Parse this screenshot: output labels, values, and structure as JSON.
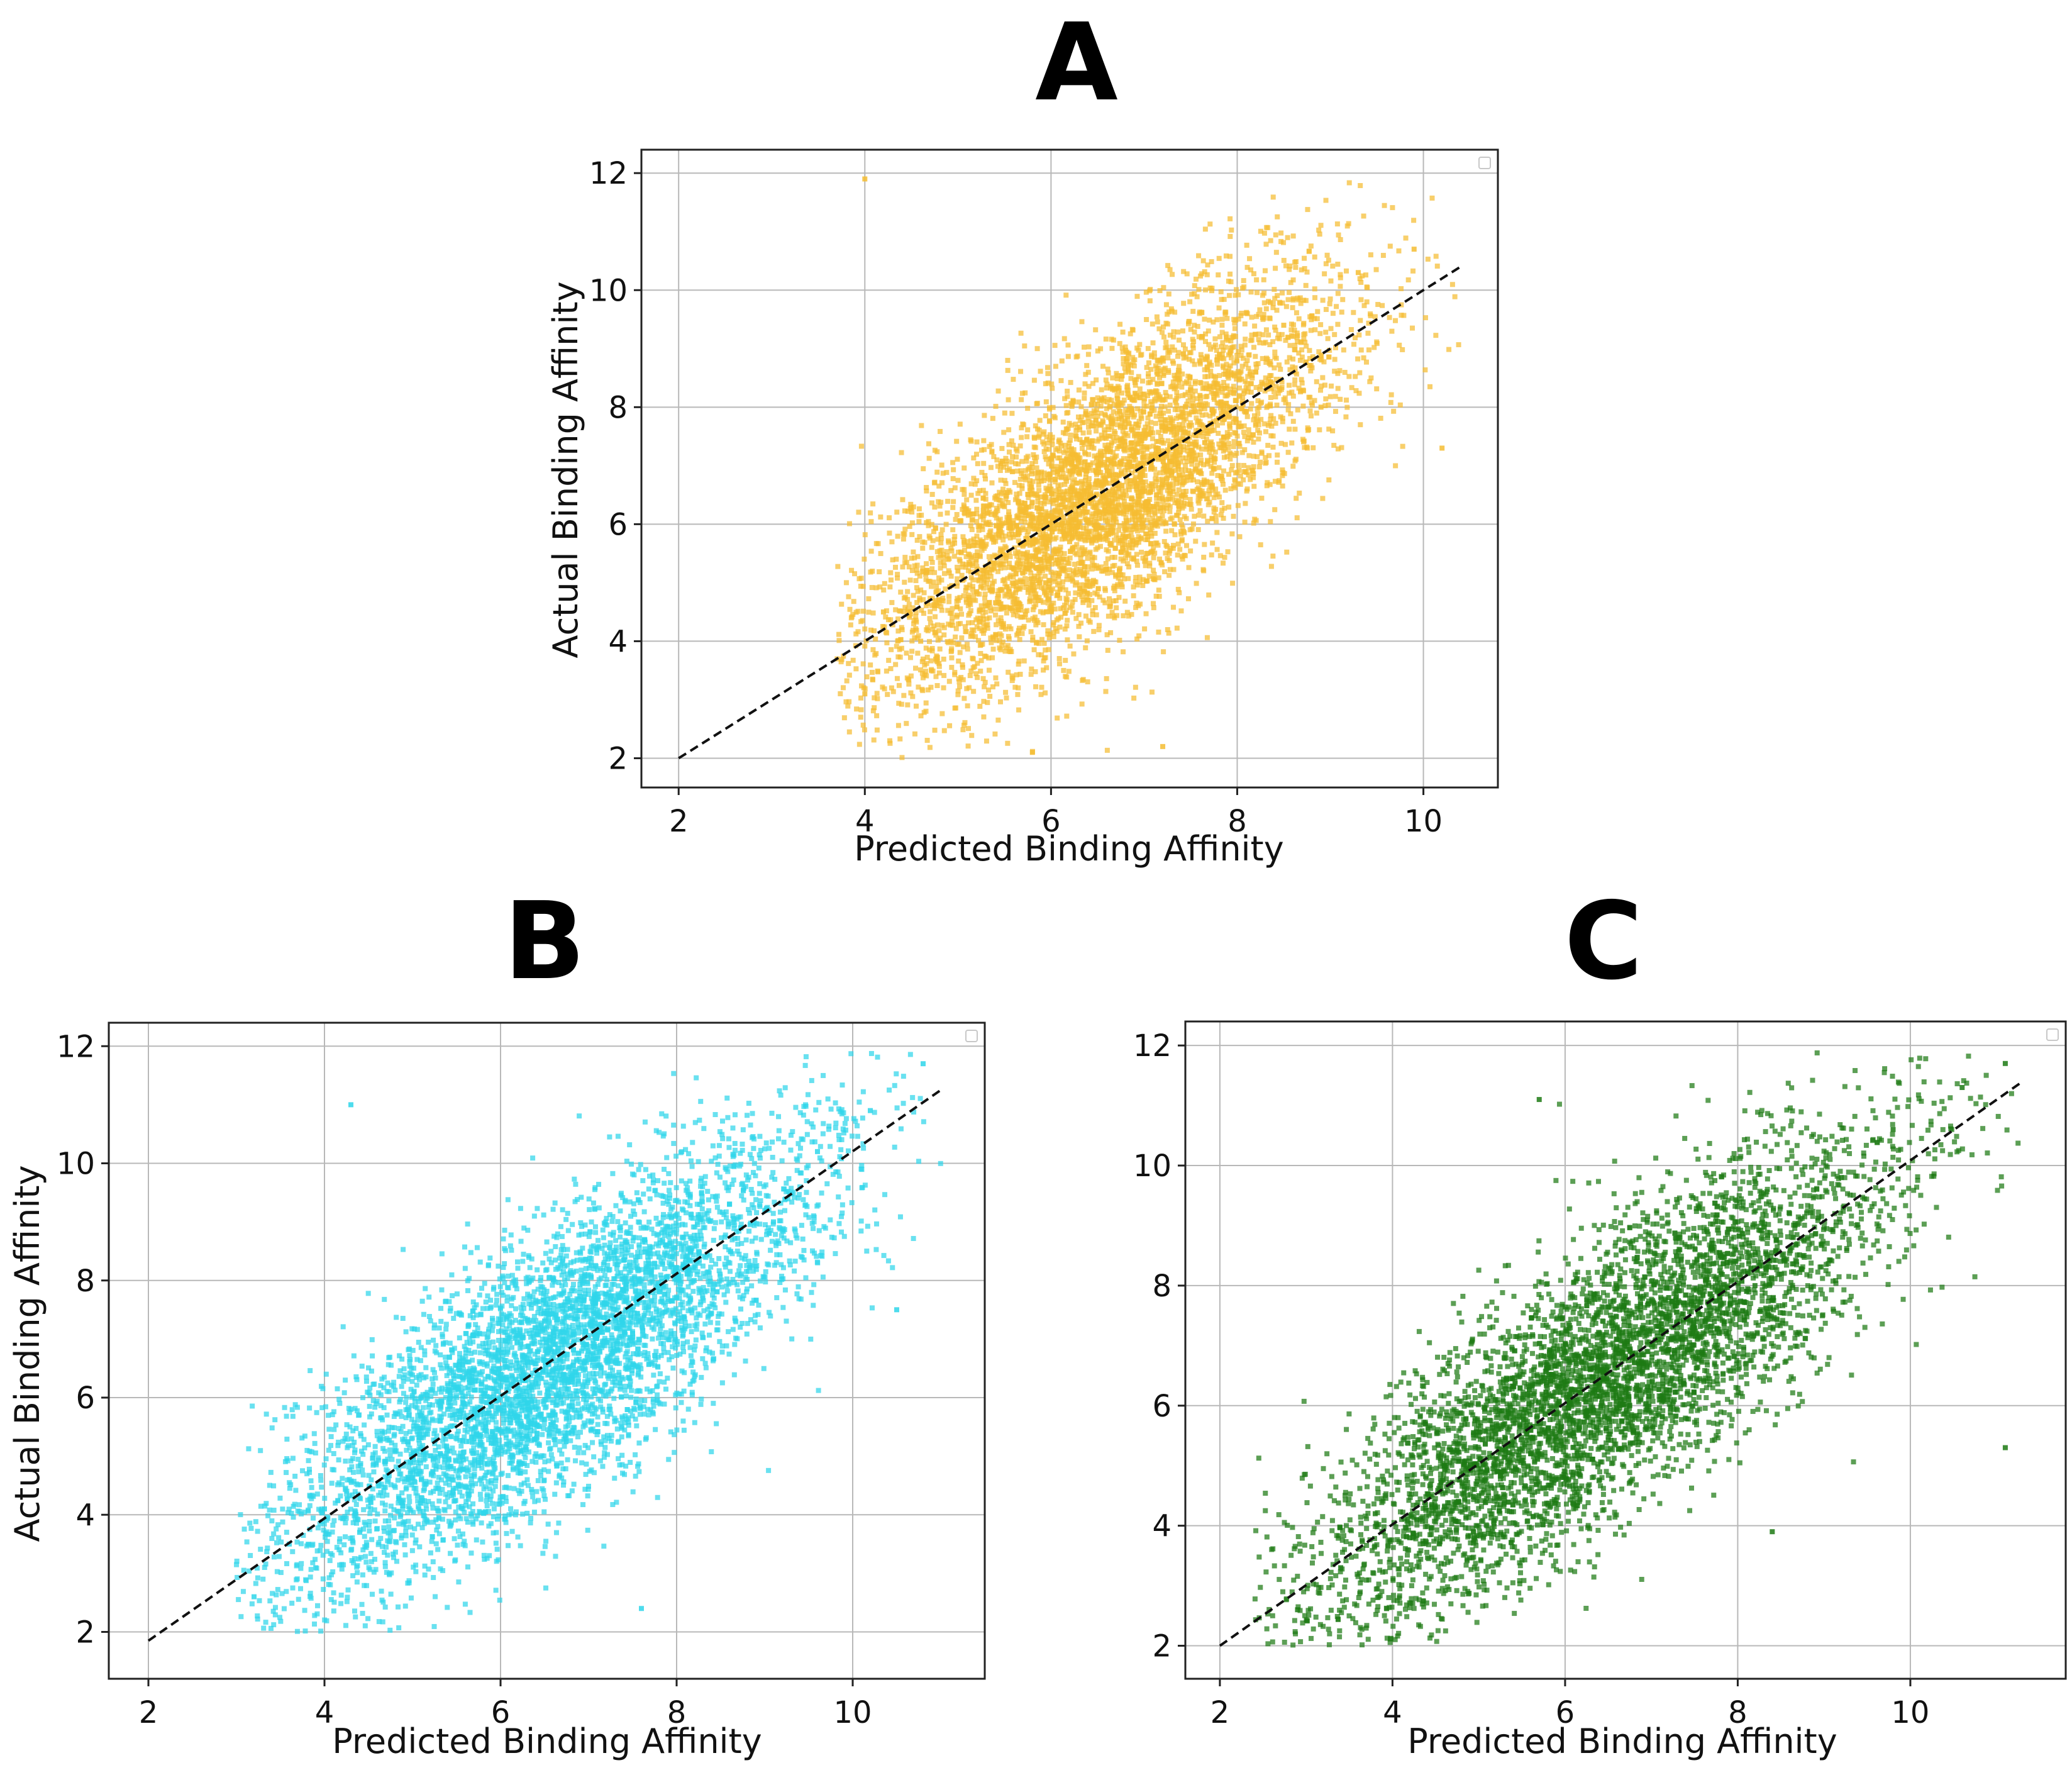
{
  "figure": {
    "panel_count": 3
  },
  "chart_data": [
    {
      "panel": "A",
      "type": "scatter",
      "title": "",
      "xlabel": "Predicted Binding Affinity",
      "ylabel": "Actual Binding Affinity",
      "xlim": [
        1.6,
        10.8
      ],
      "ylim": [
        1.5,
        12.4
      ],
      "xticks": [
        2,
        4,
        6,
        8,
        10
      ],
      "yticks": [
        2,
        4,
        6,
        8,
        10,
        12
      ],
      "grid": true,
      "legend": "top-right (empty)",
      "color": "#f5bd32",
      "series": [
        {
          "name": "samples",
          "x_range": [
            3.7,
            10.4
          ],
          "y_range": [
            2.0,
            12.0
          ],
          "approx_points": 5000,
          "points": [
            [
              4.0,
              3.1
            ],
            [
              4.2,
              4.5
            ],
            [
              4.6,
              4.0
            ],
            [
              5.0,
              5.2
            ],
            [
              5.3,
              4.6
            ],
            [
              5.5,
              6.3
            ],
            [
              5.8,
              5.0
            ],
            [
              6.0,
              6.6
            ],
            [
              6.2,
              5.7
            ],
            [
              6.5,
              7.0
            ],
            [
              6.8,
              6.3
            ],
            [
              7.0,
              7.6
            ],
            [
              7.3,
              6.9
            ],
            [
              7.6,
              8.2
            ],
            [
              7.9,
              7.5
            ],
            [
              8.2,
              8.6
            ],
            [
              8.5,
              9.4
            ],
            [
              8.9,
              8.0
            ],
            [
              9.3,
              10.3
            ],
            [
              9.9,
              10.7
            ],
            [
              4.0,
              11.9
            ],
            [
              5.8,
              2.1
            ],
            [
              7.2,
              2.2
            ],
            [
              10.2,
              7.3
            ]
          ]
        },
        {
          "name": "identity",
          "style": "dashed",
          "color": "#111111",
          "x": [
            2.0,
            10.4
          ],
          "y": [
            2.0,
            10.4
          ]
        }
      ]
    },
    {
      "panel": "B",
      "type": "scatter",
      "title": "",
      "xlabel": "Predicted Binding Affinity",
      "ylabel": "Actual Binding Affinity",
      "xlim": [
        1.55,
        11.5
      ],
      "ylim": [
        1.2,
        12.4
      ],
      "xticks": [
        2,
        4,
        6,
        8,
        10
      ],
      "yticks": [
        2,
        4,
        6,
        8,
        10,
        12
      ],
      "grid": true,
      "legend": "top-right (empty)",
      "color": "#2fd6ea",
      "series": [
        {
          "name": "samples",
          "x_range": [
            3.0,
            11.0
          ],
          "y_range": [
            2.0,
            11.9
          ],
          "approx_points": 5000,
          "points": [
            [
              3.2,
              2.6
            ],
            [
              3.6,
              3.5
            ],
            [
              4.0,
              4.1
            ],
            [
              4.4,
              3.7
            ],
            [
              4.8,
              5.1
            ],
            [
              5.1,
              4.6
            ],
            [
              5.4,
              5.8
            ],
            [
              5.7,
              5.3
            ],
            [
              6.0,
              6.4
            ],
            [
              6.3,
              5.9
            ],
            [
              6.6,
              7.0
            ],
            [
              6.9,
              6.5
            ],
            [
              7.2,
              7.6
            ],
            [
              7.5,
              7.1
            ],
            [
              7.8,
              8.4
            ],
            [
              8.2,
              8.0
            ],
            [
              8.6,
              9.3
            ],
            [
              9.1,
              9.0
            ],
            [
              9.6,
              10.2
            ],
            [
              10.2,
              10.9
            ],
            [
              10.8,
              11.7
            ],
            [
              4.3,
              11.0
            ],
            [
              7.6,
              2.4
            ],
            [
              10.5,
              7.5
            ]
          ]
        },
        {
          "name": "identity",
          "style": "dashed",
          "color": "#111111",
          "x": [
            2.0,
            11.0
          ],
          "y": [
            1.85,
            11.25
          ]
        }
      ]
    },
    {
      "panel": "C",
      "type": "scatter",
      "title": "",
      "xlabel": "Predicted Binding Affinity",
      "ylabel": "",
      "xlim": [
        1.6,
        11.8
      ],
      "ylim": [
        1.45,
        12.4
      ],
      "xticks": [
        2,
        4,
        6,
        8,
        10
      ],
      "yticks": [
        2,
        4,
        6,
        8,
        10,
        12
      ],
      "grid": true,
      "legend": "top-right (empty)",
      "color": "#1d7a14",
      "series": [
        {
          "name": "samples",
          "x_range": [
            2.4,
            11.3
          ],
          "y_range": [
            2.0,
            11.9
          ],
          "approx_points": 5000,
          "points": [
            [
              2.9,
              2.6
            ],
            [
              3.4,
              3.3
            ],
            [
              3.8,
              4.2
            ],
            [
              4.2,
              3.8
            ],
            [
              4.6,
              5.0
            ],
            [
              5.0,
              4.5
            ],
            [
              5.3,
              5.7
            ],
            [
              5.6,
              5.2
            ],
            [
              6.0,
              6.4
            ],
            [
              6.3,
              6.0
            ],
            [
              6.6,
              7.1
            ],
            [
              6.9,
              6.6
            ],
            [
              7.2,
              7.8
            ],
            [
              7.5,
              7.3
            ],
            [
              7.8,
              8.5
            ],
            [
              8.2,
              8.0
            ],
            [
              8.6,
              9.2
            ],
            [
              9.2,
              9.8
            ],
            [
              9.8,
              10.6
            ],
            [
              10.6,
              11.3
            ],
            [
              11.1,
              11.7
            ],
            [
              5.7,
              11.1
            ],
            [
              8.4,
              3.9
            ],
            [
              11.1,
              5.3
            ]
          ]
        },
        {
          "name": "identity",
          "style": "dashed",
          "color": "#111111",
          "x": [
            2.0,
            11.3
          ],
          "y": [
            2.0,
            11.4
          ]
        }
      ]
    }
  ]
}
